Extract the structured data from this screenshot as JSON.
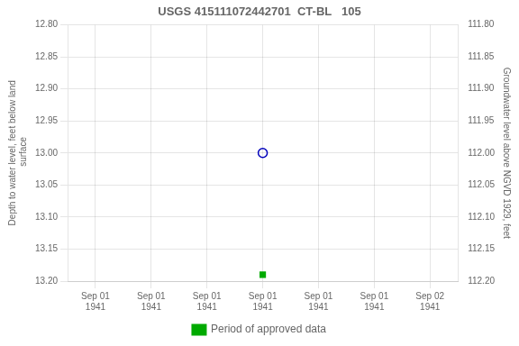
{
  "chart_data": {
    "type": "scatter",
    "title": "USGS 415111072442701  CT-BL   105",
    "ylabel": "Depth to water level, feet below land\n surface",
    "y2label": "Groundwater level above NGVD 1929, feet",
    "categories": [
      "Sep 01\n1941",
      "Sep 01\n1941",
      "Sep 01\n1941",
      "Sep 01\n1941",
      "Sep 01\n1941",
      "Sep 01\n1941",
      "Sep 02\n1941"
    ],
    "series": [
      {
        "color": "#0000bb",
        "marker": "open_circle",
        "values": [
          null,
          null,
          null,
          13.0,
          null,
          null,
          null
        ]
      },
      {
        "name": "Period of approved data",
        "color": "#00aa00",
        "marker": "square",
        "values": [
          null,
          null,
          null,
          13.19,
          null,
          null,
          null
        ]
      }
    ],
    "ylim": [
      13.2,
      12.8
    ],
    "yticks": [
      {
        "value": 12.8,
        "label": "12.80"
      },
      12.85,
      {
        "value": 12.9,
        "label": "12.90"
      },
      12.95,
      {
        "value": 13.0,
        "label": "13.00"
      },
      13.05,
      {
        "value": 13.1,
        "label": "13.10"
      },
      13.15,
      {
        "value": 13.2,
        "label": "13.20"
      }
    ],
    "y2lim": [
      112.2,
      111.8
    ],
    "y2ticks": [
      {
        "value": 112.2,
        "label": "112.20"
      },
      112.15,
      {
        "value": 112.1,
        "label": "112.10"
      },
      112.05,
      {
        "value": 112.0,
        "label": "112.00"
      },
      111.95,
      {
        "value": 111.9,
        "label": "111.90"
      },
      111.85,
      {
        "value": 111.8,
        "label": "111.80"
      }
    ],
    "grid": true,
    "legend": "bottom"
  }
}
